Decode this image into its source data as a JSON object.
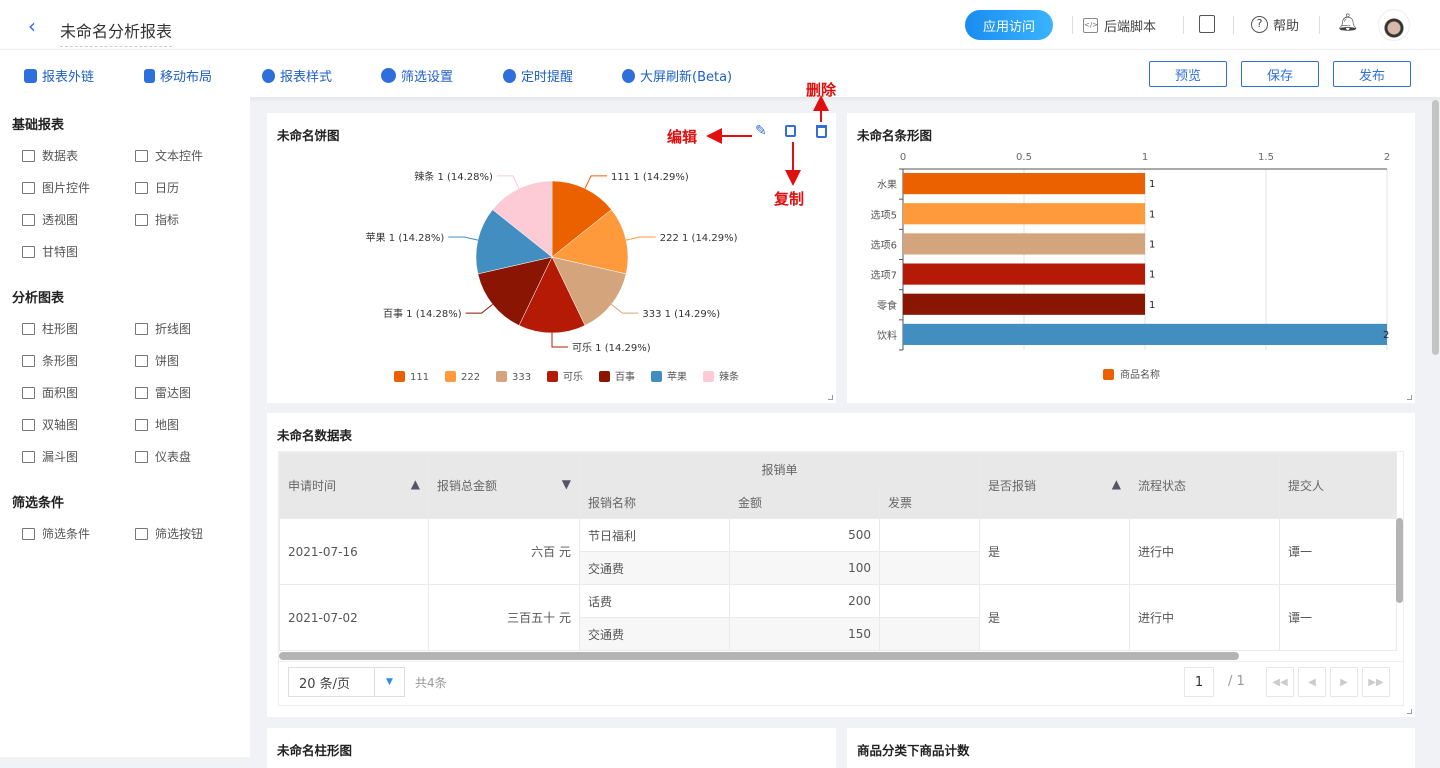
{
  "header": {
    "title": "未命名分析报表",
    "app_access": "应用访问",
    "backend_script": "后端脚本",
    "help": "帮助"
  },
  "toolbar": {
    "items": [
      "报表外链",
      "移动布局",
      "报表样式",
      "筛选设置",
      "定时提醒",
      "大屏刷新(Beta)"
    ],
    "preview": "预览",
    "save": "保存",
    "publish": "发布"
  },
  "sidebar": {
    "sections": [
      {
        "title": "基础报表",
        "items": [
          {
            "label": "数据表",
            "icon": "table-icon"
          },
          {
            "label": "文本控件",
            "icon": "text-icon"
          },
          {
            "label": "图片控件",
            "icon": "image-icon"
          },
          {
            "label": "日历",
            "icon": "calendar-icon"
          },
          {
            "label": "透视图",
            "icon": "pivot-icon"
          },
          {
            "label": "指标",
            "icon": "metric-icon"
          },
          {
            "label": "甘特图",
            "icon": "gantt-icon"
          }
        ]
      },
      {
        "title": "分析图表",
        "items": [
          {
            "label": "柱形图",
            "icon": "column-chart-icon"
          },
          {
            "label": "折线图",
            "icon": "line-chart-icon"
          },
          {
            "label": "条形图",
            "icon": "bar-chart-icon"
          },
          {
            "label": "饼图",
            "icon": "pie-chart-icon"
          },
          {
            "label": "面积图",
            "icon": "area-chart-icon"
          },
          {
            "label": "雷达图",
            "icon": "radar-chart-icon"
          },
          {
            "label": "双轴图",
            "icon": "dual-axis-icon"
          },
          {
            "label": "地图",
            "icon": "map-icon"
          },
          {
            "label": "漏斗图",
            "icon": "funnel-icon"
          },
          {
            "label": "仪表盘",
            "icon": "gauge-icon"
          }
        ]
      },
      {
        "title": "筛选条件",
        "items": [
          {
            "label": "筛选条件",
            "icon": "filter-condition-icon"
          },
          {
            "label": "筛选按钮",
            "icon": "filter-button-icon"
          }
        ]
      }
    ]
  },
  "annotations": {
    "edit": "编辑",
    "copy": "复制",
    "delete": "删除"
  },
  "colors": {
    "accent": "#2f6fdc",
    "annotation": "#e01010"
  },
  "chart_data": [
    {
      "type": "pie",
      "title": "未命名饼图",
      "categories": [
        "111",
        "222",
        "333",
        "可乐",
        "百事",
        "苹果",
        "辣条"
      ],
      "values": [
        1,
        1,
        1,
        1,
        1,
        1,
        1
      ],
      "labels": [
        "111 1 (14.29%)",
        "222 1 (14.29%)",
        "333 1 (14.29%)",
        "可乐 1 (14.29%)",
        "百事 1 (14.28%)",
        "苹果 1 (14.28%)",
        "辣条 1 (14.28%)"
      ],
      "colors": [
        "#eb6100",
        "#ff9a3c",
        "#d4a57c",
        "#b51a07",
        "#8a1503",
        "#428ec0",
        "#fccbd6"
      ],
      "legend": "bottom"
    },
    {
      "type": "bar",
      "orientation": "horizontal",
      "title": "未命名条形图",
      "categories": [
        "水果",
        "选项5",
        "选项6",
        "选项7",
        "零食",
        "饮料"
      ],
      "series": [
        {
          "name": "商品名称",
          "values": [
            1,
            1,
            1,
            1,
            1,
            2
          ]
        }
      ],
      "colors": [
        "#eb6100",
        "#ff9a3c",
        "#d4a57c",
        "#b51a07",
        "#8a1503",
        "#428ec0"
      ],
      "xlim": [
        0,
        2
      ],
      "ticks": [
        "0",
        "0.5",
        "1",
        "1.5",
        "2"
      ],
      "grid": true,
      "legend": "bottom"
    }
  ],
  "table": {
    "title": "未命名数据表",
    "group_header": "报销单",
    "columns": [
      "申请时间",
      "报销总金额",
      "报销名称",
      "金额",
      "发票",
      "是否报销",
      "流程状态",
      "提交人"
    ],
    "rows": [
      {
        "date": "2021-07-16",
        "total": "六百 元",
        "items": [
          {
            "name": "节日福利",
            "amount": "500",
            "invoice": ""
          },
          {
            "name": "交通费",
            "amount": "100",
            "invoice": ""
          }
        ],
        "reimbursed": "是",
        "status": "进行中",
        "submitter": "谭一"
      },
      {
        "date": "2021-07-02",
        "total": "三百五十 元",
        "items": [
          {
            "name": "话费",
            "amount": "200",
            "invoice": ""
          },
          {
            "name": "交通费",
            "amount": "150",
            "invoice": ""
          }
        ],
        "reimbursed": "是",
        "status": "进行中",
        "submitter": "谭一"
      }
    ],
    "page_size": "20 条/页",
    "total": "共4条",
    "page": "1",
    "page_total": "/ 1"
  },
  "bottom_cards": [
    "未命名柱形图",
    "商品分类下商品计数"
  ]
}
